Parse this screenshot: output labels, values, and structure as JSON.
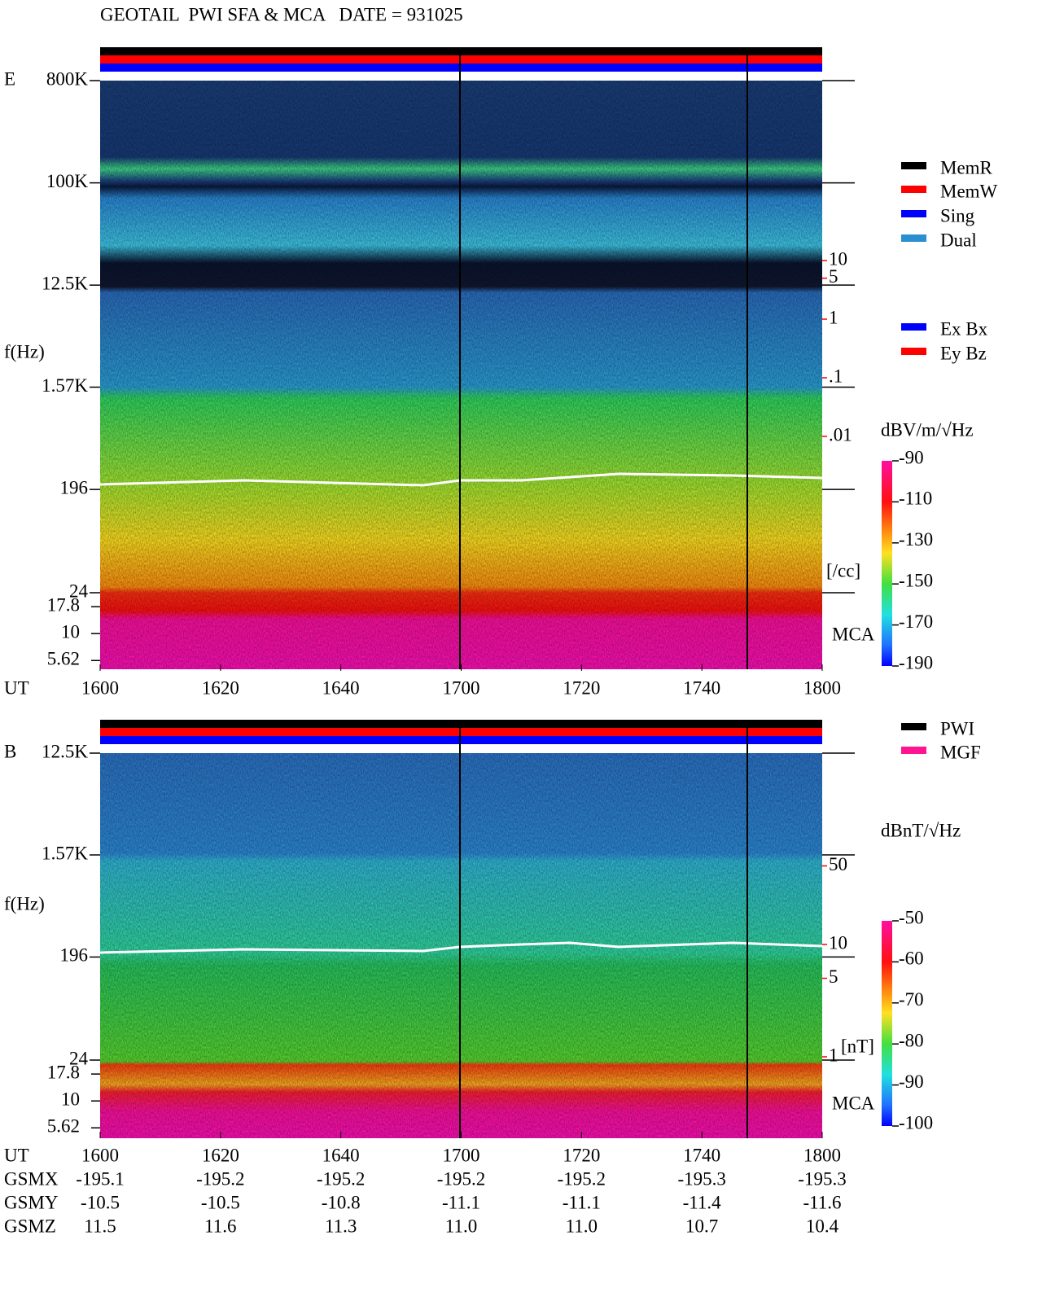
{
  "title": "GEOTAIL  PWI SFA & MCA   DATE = 931025",
  "chart_data": [
    {
      "type": "spectrogram",
      "panel_label": "E",
      "y_label": "f(Hz)",
      "x_label": "UT",
      "yscale": "log",
      "ylim": [
        24,
        800000
      ],
      "yticks": [
        {
          "value": 800000,
          "label": "800K"
        },
        {
          "value": 100000,
          "label": "100K"
        },
        {
          "value": 12500,
          "label": "12.5K"
        },
        {
          "value": 1570,
          "label": "1.57K"
        },
        196,
        24
      ],
      "mca": {
        "label": "MCA",
        "ylim": [
          4.5,
          24
        ],
        "yticks": [
          17.8,
          10,
          5.62
        ]
      },
      "density_axis": {
        "unit": "[/cc]",
        "color": "#ff0000",
        "ylim": [
          0.001,
          10000
        ],
        "yticks": [
          10,
          5,
          1,
          {
            "value": 0.1,
            "label": ".1"
          },
          {
            "value": 0.01,
            "label": ".01"
          }
        ]
      },
      "colorbar": {
        "unit": "dBV/m/√Hz",
        "ylim": [
          -190,
          -90
        ],
        "yticks": [
          -90,
          -110,
          -130,
          -150,
          -170,
          -190
        ]
      },
      "legends": [
        [
          {
            "name": "MemR",
            "color": "#000000"
          },
          {
            "name": "MemW",
            "color": "#ff0000"
          },
          {
            "name": "Sing",
            "color": "#0000ff"
          },
          {
            "name": "Dual",
            "color": "#2a8fd0"
          }
        ],
        [
          {
            "name": "Ex Bx",
            "color": "#0000ff"
          },
          {
            "name": "Ey Bz",
            "color": "#ff0000"
          }
        ]
      ],
      "categories": [
        "1600",
        "1620",
        "1640",
        "1700",
        "1720",
        "1740",
        "1800"
      ]
    },
    {
      "type": "spectrogram",
      "panel_label": "B",
      "y_label": "f(Hz)",
      "x_label": "UT",
      "yscale": "log",
      "ylim": [
        24,
        12500
      ],
      "yticks": [
        {
          "value": 12500,
          "label": "12.5K"
        },
        {
          "value": 1570,
          "label": "1.57K"
        },
        196,
        24
      ],
      "mca": {
        "label": "MCA",
        "ylim": [
          4.5,
          24
        ],
        "yticks": [
          17.8,
          10,
          5.62
        ]
      },
      "density_axis": {
        "unit": "[nT]",
        "color": "#ff0000",
        "ylim": [
          1,
          100
        ],
        "yticks": [
          50,
          10,
          5,
          1
        ]
      },
      "colorbar": {
        "unit": "dBnT/√Hz",
        "ylim": [
          -100,
          -50
        ],
        "yticks": [
          -50,
          -60,
          -70,
          -80,
          -90,
          -100
        ]
      },
      "legends": [
        [
          {
            "name": "PWI",
            "color": "#000000"
          },
          {
            "name": "MGF",
            "color": "#ff1493"
          }
        ]
      ],
      "categories": [
        "1600",
        "1620",
        "1640",
        "1700",
        "1720",
        "1740",
        "1800"
      ]
    }
  ],
  "orbit": [
    {
      "name": "GSMX",
      "values": [
        "-195.1",
        "-195.2",
        "-195.2",
        "-195.2",
        "-195.2",
        "-195.3",
        "-195.3"
      ]
    },
    {
      "name": "GSMY",
      "values": [
        "-10.5",
        "-10.5",
        "-10.8",
        "-11.1",
        "-11.1",
        "-11.4",
        "-11.6"
      ]
    },
    {
      "name": "GSMZ",
      "values": [
        "11.5",
        "11.6",
        "11.3",
        "11.0",
        "11.0",
        "10.7",
        "10.4"
      ]
    }
  ]
}
